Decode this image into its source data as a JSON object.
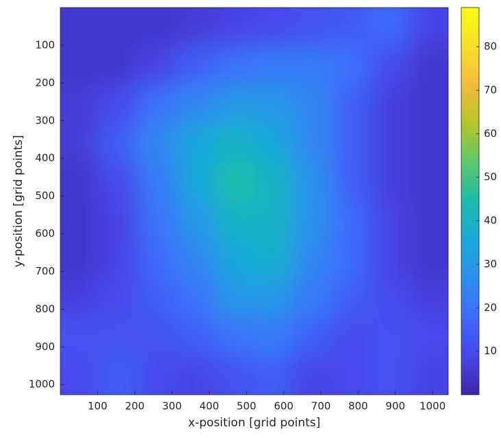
{
  "chart_data": {
    "type": "heatmap",
    "xlabel": "x-position [grid points]",
    "ylabel": "y-position [grid points]",
    "xlim": [
      0,
      1042
    ],
    "ylim": [
      0,
      1027
    ],
    "y_reversed": true,
    "xticks": [
      100,
      200,
      300,
      400,
      500,
      600,
      700,
      800,
      900,
      1000
    ],
    "yticks": [
      100,
      200,
      300,
      400,
      500,
      600,
      700,
      800,
      900,
      1000
    ],
    "clim": [
      0,
      89
    ],
    "cticks": [
      10,
      20,
      30,
      40,
      50,
      60,
      70,
      80
    ],
    "colormap": [
      "#3e26a8",
      "#4746eb",
      "#3e69fd",
      "#2d8ef0",
      "#18a9d9",
      "#1bbbaa",
      "#5bc86b",
      "#b5c52a",
      "#f4ba3d",
      "#fadf2a",
      "#f9fb15"
    ],
    "z": [
      [
        5,
        5,
        5,
        6,
        8,
        10,
        12,
        14,
        18,
        8
      ],
      [
        5,
        5,
        8,
        15,
        20,
        22,
        22,
        20,
        10,
        5
      ],
      [
        6,
        10,
        20,
        25,
        30,
        30,
        25,
        15,
        7,
        5
      ],
      [
        6,
        15,
        25,
        35,
        40,
        35,
        25,
        15,
        7,
        5
      ],
      [
        5,
        10,
        22,
        35,
        45,
        40,
        28,
        15,
        7,
        5
      ],
      [
        5,
        8,
        20,
        30,
        40,
        40,
        28,
        18,
        8,
        5
      ],
      [
        5,
        8,
        18,
        25,
        35,
        38,
        25,
        18,
        8,
        5
      ],
      [
        7,
        10,
        15,
        20,
        30,
        30,
        22,
        15,
        10,
        7
      ],
      [
        12,
        12,
        12,
        15,
        20,
        22,
        15,
        10,
        12,
        10
      ],
      [
        10,
        15,
        10,
        8,
        12,
        15,
        8,
        10,
        12,
        8
      ]
    ]
  }
}
